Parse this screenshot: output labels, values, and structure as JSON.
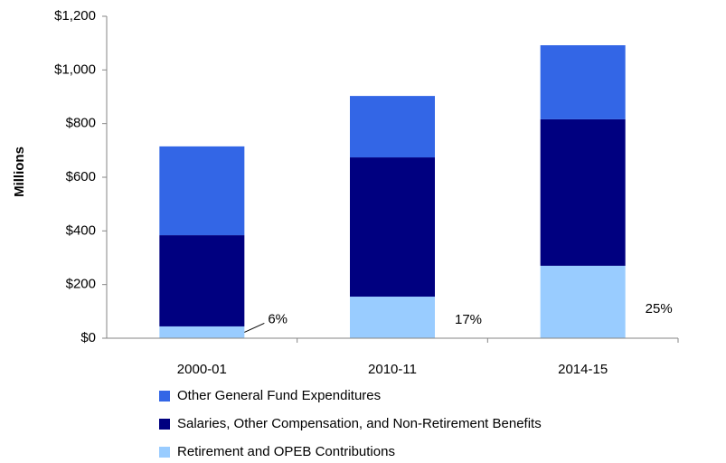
{
  "chart_data": {
    "type": "bar",
    "stacked": true,
    "y_label": "Millions",
    "categories": [
      "2000-01",
      "2010-11",
      "2014-15"
    ],
    "series": [
      {
        "name": "Retirement and OPEB Contributions",
        "color": "#99ccff",
        "values": [
          44,
          155,
          270
        ],
        "value_labels": [
          "6%",
          "17%",
          "25%"
        ]
      },
      {
        "name": "Salaries, Other Compensation, and Non-Retirement Benefits",
        "color": "#000080",
        "values": [
          340,
          519,
          546
        ]
      },
      {
        "name": "Other General Fund Expenditures",
        "color": "#3366e6",
        "values": [
          331,
          229,
          276
        ]
      }
    ],
    "ylim": [
      0,
      1200
    ],
    "yticks": [
      {
        "value": 0,
        "label": "$0"
      },
      {
        "value": 200,
        "label": "$200"
      },
      {
        "value": 400,
        "label": "$400"
      },
      {
        "value": 600,
        "label": "$600"
      },
      {
        "value": 800,
        "label": "$800"
      },
      {
        "value": 1000,
        "label": "$1,000"
      },
      {
        "value": 1200,
        "label": "$1,200"
      }
    ],
    "legend": "bottom"
  }
}
